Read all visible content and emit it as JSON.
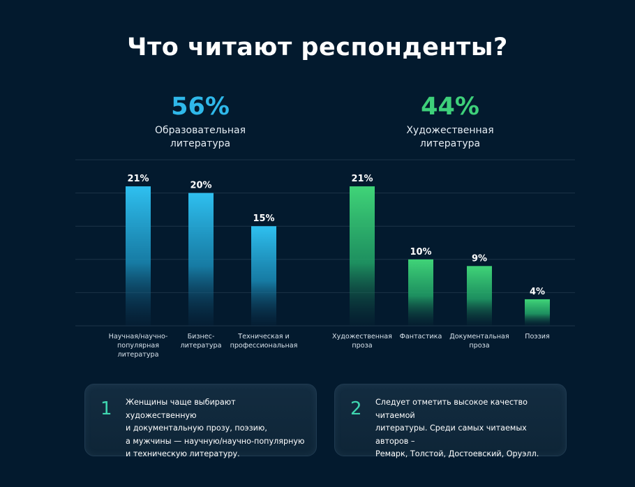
{
  "title": "Что читают респонденты?",
  "colors": {
    "background": "#031a2e",
    "left_accent": "#2fb8ea",
    "right_accent": "#3ed07a",
    "card_number": "#3fd6b0",
    "grid": "#1d3448"
  },
  "groups": {
    "left": {
      "percent": "56%",
      "label": "Образовательная\nлитература"
    },
    "right": {
      "percent": "44%",
      "label": "Художественная\nлитература"
    }
  },
  "chart_data": {
    "type": "bar",
    "title": "",
    "xlabel": "",
    "ylabel": "",
    "ylim": [
      0,
      25
    ],
    "grid": true,
    "categories": [
      "Научная/научно-\nпопулярная\nлитература",
      "Бизнес-\nлитература",
      "Техническая и\nпрофессиональная",
      "Художественная\nпроза",
      "Фантастика",
      "Документальная\nпроза",
      "Поэзия"
    ],
    "values": [
      21,
      20,
      15,
      21,
      10,
      9,
      4
    ],
    "value_labels": [
      "21%",
      "20%",
      "15%",
      "21%",
      "10%",
      "9%",
      "4%"
    ],
    "groups": [
      "left",
      "left",
      "left",
      "right",
      "right",
      "right",
      "right"
    ]
  },
  "notes": [
    {
      "number": "1",
      "text": "Женщины чаще выбирают художественную\nи документальную прозу, поэзию,\nа мужчины — научную/научно-популярную\nи техническую литературу."
    },
    {
      "number": "2",
      "text": "Следует отметить высокое качество читаемой\nлитературы. Среди самых читаемых авторов –\nРемарк, Толстой, Достоевский, Оруэлл."
    }
  ]
}
